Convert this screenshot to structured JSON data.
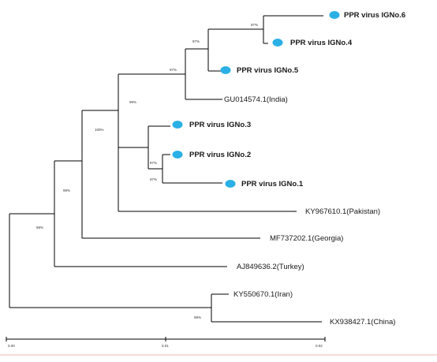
{
  "colors": {
    "marker": "#2ab0e6",
    "branch": "#000000",
    "bottom_rule": "#f6dcd8"
  },
  "tree": {
    "leaves": {
      "pprv6": {
        "label": "PPR virus IGNo.6",
        "marker": true
      },
      "pprv4": {
        "label": "PPR virus IGNo.4",
        "marker": true
      },
      "pprv5": {
        "label": "PPR virus IGNo.5",
        "marker": true
      },
      "india": {
        "label": "GU014574.1(India)",
        "marker": false
      },
      "pprv3": {
        "label": "PPR virus IGNo.3",
        "marker": true
      },
      "pprv2": {
        "label": "PPR virus IGNo.2",
        "marker": true
      },
      "pprv1": {
        "label": "PPR virus IGNo.1",
        "marker": true
      },
      "pakistan": {
        "label": "KY967610.1(Pakistan)",
        "marker": false
      },
      "georgia": {
        "label": "MF737202.1(Georgia)",
        "marker": false
      },
      "turkey": {
        "label": "AJ849636.2(Turkey)",
        "marker": false
      },
      "iran": {
        "label": "KY550670.1(Iran)",
        "marker": false
      },
      "china": {
        "label": "KX938427.1(China)",
        "marker": false
      }
    },
    "bootstrap": {
      "n64": "97%",
      "n645": "97%",
      "n645i": "97%",
      "n32": "97%",
      "n321": "97%",
      "innerA": "99%",
      "innerB": "100%",
      "innerC": "98%",
      "innerD": "98%",
      "outgroup": "98%"
    }
  },
  "scale_bar": {
    "ticks": [
      "0.00",
      "0.01",
      "0.02"
    ]
  }
}
